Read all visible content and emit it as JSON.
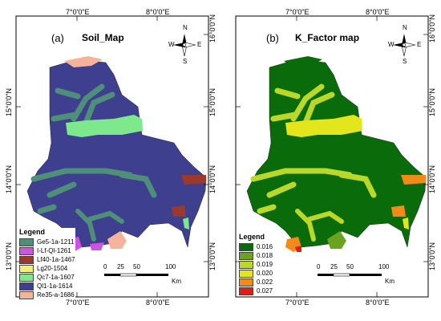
{
  "coords": {
    "lon_7": "7°0'0\"E",
    "lon_8": "8°0'0\"E",
    "lat_13": "13°0'0\"N",
    "lat_14": "14°0'0\"N",
    "lat_15": "15°0'0\"N",
    "lat_16": "16°0'0\"N"
  },
  "panel_a": {
    "label": "(a)",
    "title": "Soil_Map",
    "legend_title": "Legend",
    "legend": [
      {
        "label": "Ge5-1a-1211",
        "color": "#4f8f7a"
      },
      {
        "label": "I-Lf-Ql-1261",
        "color": "#cc55e0"
      },
      {
        "label": "Lf40-1a-1467",
        "color": "#9a3a2e"
      },
      {
        "label": "Lg20-1504",
        "color": "#f2ee7a"
      },
      {
        "label": "Qc7-1a-1607",
        "color": "#7ee88c"
      },
      {
        "label": "Ql1-1a-1614",
        "color": "#3e3f8f"
      },
      {
        "label": "Re35-a-1686",
        "color": "#f4b39a"
      }
    ]
  },
  "panel_b": {
    "label": "(b)",
    "title": "K_Factor map",
    "legend_title": "Legend",
    "legend": [
      {
        "label": "0.016",
        "color": "#0a6b0a"
      },
      {
        "label": "0.018",
        "color": "#6aa31f"
      },
      {
        "label": "0.019",
        "color": "#b9d82a"
      },
      {
        "label": "0.020",
        "color": "#e3e61a"
      },
      {
        "label": "0.022",
        "color": "#f28a1a"
      },
      {
        "label": "0.027",
        "color": "#e01e12"
      }
    ]
  },
  "north_arrow": {
    "n": "N",
    "s": "S",
    "e": "E",
    "w": "W"
  },
  "scale_bar": {
    "t0": "0",
    "t25": "25",
    "t50": "50",
    "t100": "100",
    "unit": "Km"
  }
}
